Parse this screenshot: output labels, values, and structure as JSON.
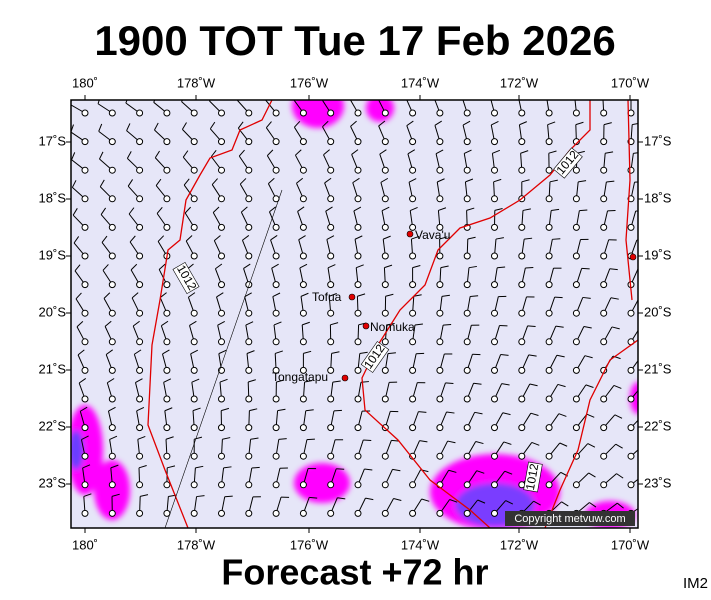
{
  "header": {
    "title": "1900 TOT Tue 17 Feb 2026"
  },
  "map": {
    "lon_labels": [
      "180˚",
      "178˚W",
      "176˚W",
      "174˚W",
      "172˚W",
      "170˚W"
    ],
    "lat_labels": [
      "17˚S",
      "18˚S",
      "19˚S",
      "20˚S",
      "21˚S",
      "22˚S",
      "23˚S"
    ],
    "places": [
      "Vava'u",
      "Tofua",
      "Nomuka",
      "Tongatapu"
    ],
    "contour_labels": [
      "1012",
      "1012",
      "1012",
      "1012"
    ],
    "credit": "Copyright metvuw.com"
  },
  "footer": {
    "forecast": "Forecast +72 hr",
    "image_id": "IM2"
  }
}
